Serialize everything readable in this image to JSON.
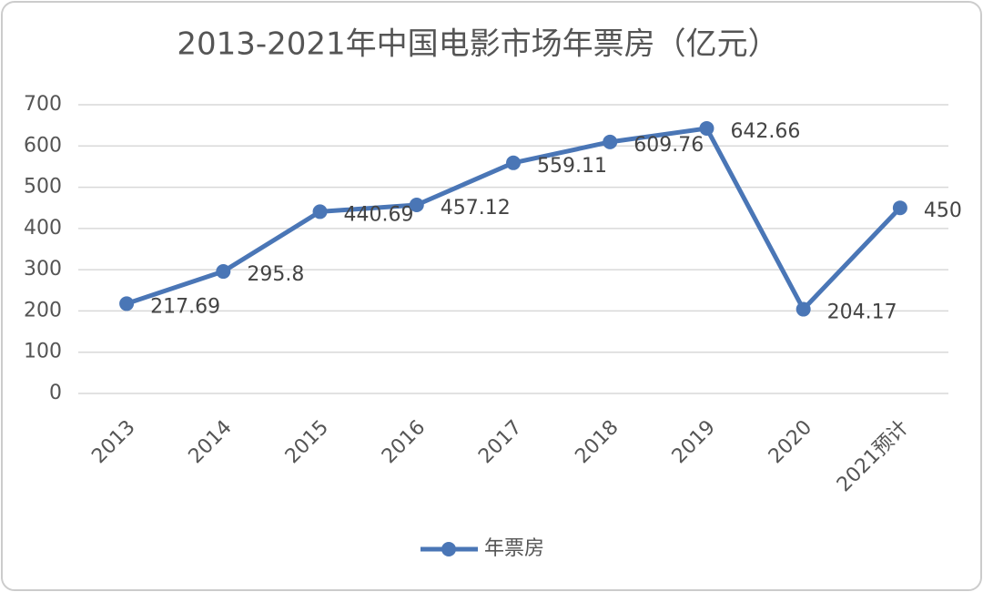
{
  "chart_data": {
    "type": "line",
    "title": "2013-2021年中国电影市场年票房（亿元）",
    "categories": [
      "2013",
      "2014",
      "2015",
      "2016",
      "2017",
      "2018",
      "2019",
      "2020",
      "2021预计"
    ],
    "series": [
      {
        "name": "年票房",
        "color": "#4a76b6",
        "values": [
          217.69,
          295.8,
          440.69,
          457.12,
          559.11,
          609.76,
          642.66,
          204.17,
          450
        ]
      }
    ],
    "ylim": [
      0,
      700
    ],
    "yticks": [
      0,
      100,
      200,
      300,
      400,
      500,
      600,
      700
    ],
    "grid": true,
    "legend": "bottom",
    "data_labels": true
  }
}
